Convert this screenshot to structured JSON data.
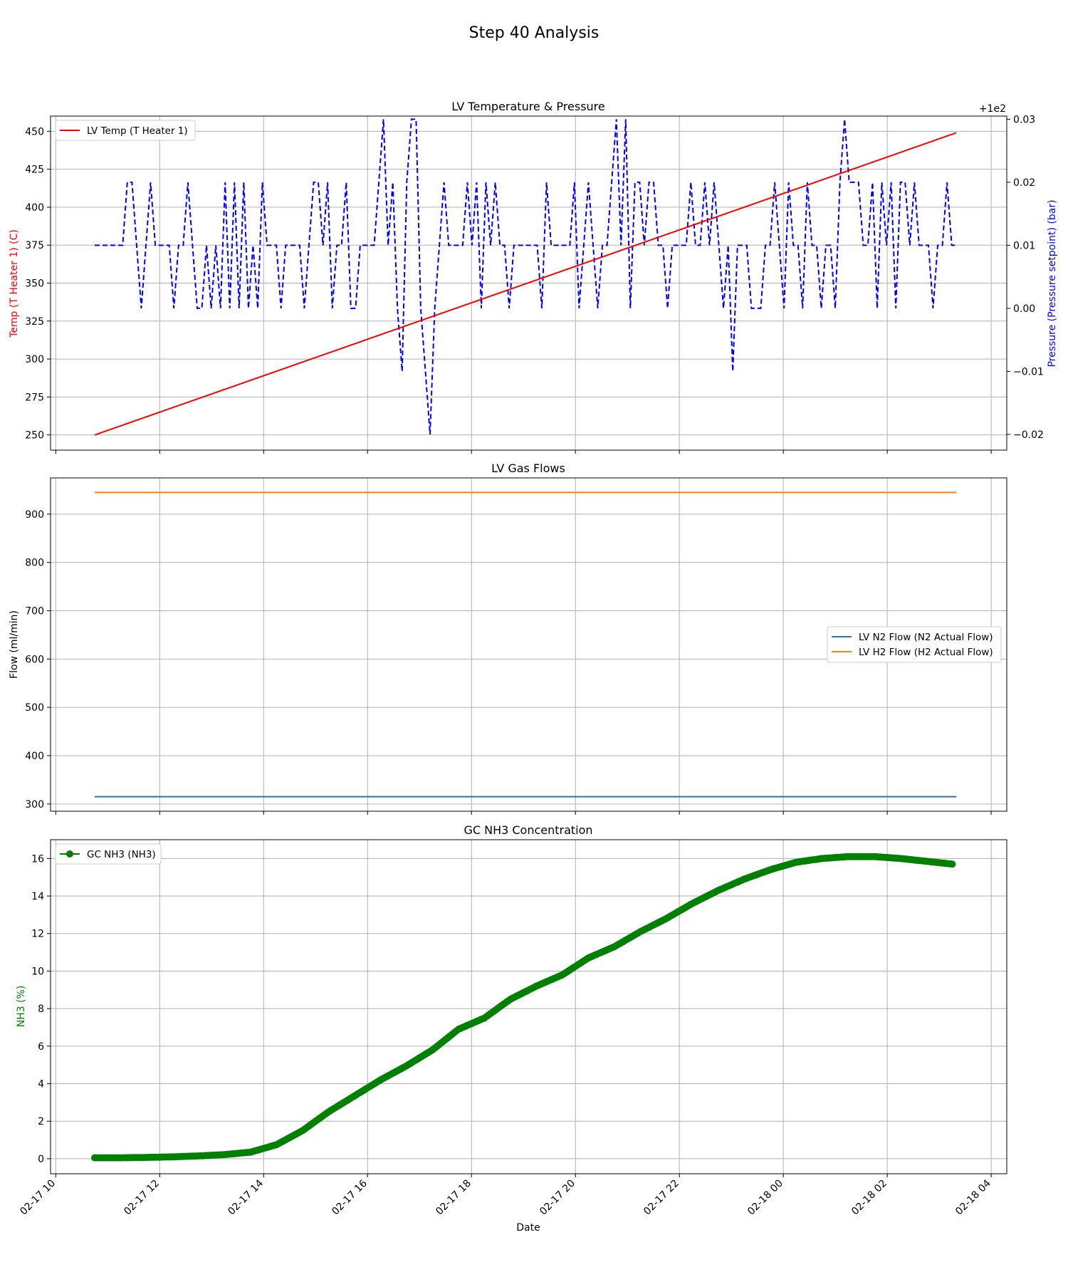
{
  "figure_title": "Step 40 Analysis",
  "x_ticks": [
    "02-17 10",
    "02-17 12",
    "02-17 14",
    "02-17 16",
    "02-17 18",
    "02-17 20",
    "02-17 22",
    "02-18 00",
    "02-18 02",
    "02-18 04"
  ],
  "x_label": "Date",
  "colors": {
    "temp": "#ff0000",
    "pressure": "#0000ff",
    "n2": "#1f77b4",
    "h2": "#ff7f0e",
    "nh3": "#008000"
  },
  "chart_data": [
    {
      "type": "line",
      "title": "LV Temperature & Pressure",
      "x_range": [
        "2017-02-17 10:45",
        "2017-02-18 03:20"
      ],
      "xlim_hours": [
        9.9,
        28.3
      ],
      "ylabel": "Temp (T Heater 1) (C)",
      "ylim": [
        240,
        460
      ],
      "yticks": [
        "250",
        "275",
        "300",
        "325",
        "350",
        "375",
        "400",
        "425",
        "450"
      ],
      "y2label": "Pressure (Pressure setpoint) (bar)",
      "y2_offset_label": "+1e2",
      "y2lim": [
        -0.0225,
        0.0305
      ],
      "y2ticks": [
        "−0.02",
        "−0.01",
        "0.00",
        "0.01",
        "0.02",
        "0.03"
      ],
      "legend": [
        "LV Temp (T Heater 1)"
      ],
      "legend_position": "upper left",
      "series": [
        {
          "name": "LV Temp (T Heater 1)",
          "axis": "left",
          "style": "solid",
          "x_hours": [
            10.75,
            27.33
          ],
          "values": [
            250,
            449
          ]
        },
        {
          "name": "Pressure (Pressure setpoint)",
          "axis": "right",
          "style": "dashed",
          "x_start_hours": 10.75,
          "x_end_hours": 27.33,
          "values_offset": [
            0.01,
            0.01,
            0.01,
            0.01,
            0.01,
            0.01,
            0.01,
            0.02,
            0.02,
            0.01,
            0,
            0.01,
            0.02,
            0.01,
            0.01,
            0.01,
            0.01,
            0,
            0.01,
            0.01,
            0.02,
            0.01,
            0,
            0,
            0.01,
            0,
            0.01,
            0,
            0.02,
            0,
            0.02,
            0,
            0.02,
            0,
            0.01,
            0,
            0.02,
            0.01,
            0.01,
            0.01,
            0,
            0.01,
            0.01,
            0.01,
            0.01,
            0,
            0.01,
            0.02,
            0.02,
            0.01,
            0.02,
            0,
            0.01,
            0.01,
            0.02,
            0,
            0,
            0.01,
            0.01,
            0.01,
            0.01,
            0.02,
            0.03,
            0.01,
            0.02,
            0,
            -0.01,
            0.02,
            0.03,
            0.03,
            0,
            -0.01,
            -0.02,
            0,
            0.01,
            0.02,
            0.01,
            0.01,
            0.01,
            0.01,
            0.02,
            0.01,
            0.02,
            0,
            0.02,
            0.01,
            0.02,
            0.01,
            0.01,
            0,
            0.01,
            0.01,
            0.01,
            0.01,
            0.01,
            0.01,
            0,
            0.02,
            0.01,
            0.01,
            0.01,
            0.01,
            0.01,
            0.02,
            0,
            0.01,
            0.02,
            0.01,
            0,
            0.01,
            0.01,
            0.02,
            0.03,
            0.01,
            0.03,
            0,
            0.02,
            0.02,
            0.01,
            0.02,
            0.02,
            0.01,
            0.01,
            0,
            0.01,
            0.01,
            0.01,
            0.01,
            0.02,
            0.01,
            0.01,
            0.02,
            0.01,
            0.02,
            0.01,
            0,
            0.01,
            -0.01,
            0.01,
            0.01,
            0.01,
            0,
            0,
            0,
            0.01,
            0.01,
            0.02,
            0.01,
            0,
            0.02,
            0.01,
            0.01,
            0,
            0.02,
            0.01,
            0.01,
            0,
            0.01,
            0.01,
            0,
            0.02,
            0.03,
            0.02,
            0.02,
            0.02,
            0.01,
            0.01,
            0.02,
            0,
            0.02,
            0.01,
            0.02,
            0,
            0.02,
            0.02,
            0.01,
            0.02,
            0.01,
            0.01,
            0.01,
            0,
            0.01,
            0.01,
            0.02,
            0.01,
            0.01
          ]
        }
      ]
    },
    {
      "type": "line",
      "title": "LV Gas Flows",
      "xlim_hours": [
        9.9,
        28.3
      ],
      "ylabel": "Flow (ml/min)",
      "ylim": [
        285,
        975
      ],
      "yticks": [
        "300",
        "400",
        "500",
        "600",
        "700",
        "800",
        "900"
      ],
      "legend": [
        "LV N2 Flow (N2 Actual Flow)",
        "LV H2 Flow (H2 Actual Flow)"
      ],
      "legend_position": "center right",
      "series": [
        {
          "name": "LV N2 Flow (N2 Actual Flow)",
          "x_hours": [
            10.75,
            27.33
          ],
          "values": [
            315,
            315
          ]
        },
        {
          "name": "LV H2 Flow (H2 Actual Flow)",
          "x_hours": [
            10.75,
            27.33
          ],
          "values": [
            945,
            945
          ]
        }
      ]
    },
    {
      "type": "line",
      "marker": "circle",
      "title": "GC NH3 Concentration",
      "xlim_hours": [
        9.9,
        28.3
      ],
      "xlabel": "Date",
      "ylabel": "NH3 (%)",
      "ylim": [
        -0.8,
        17
      ],
      "yticks": [
        "0",
        "2",
        "4",
        "6",
        "8",
        "10",
        "12",
        "14",
        "16"
      ],
      "legend": [
        "GC NH3 (NH3)"
      ],
      "legend_position": "upper left",
      "series": [
        {
          "name": "GC NH3 (NH3)",
          "x_hours": [
            10.75,
            11.25,
            11.75,
            12.25,
            12.75,
            13.25,
            13.75,
            14.25,
            14.75,
            15.25,
            15.75,
            16.25,
            16.75,
            17.25,
            17.75,
            18.25,
            18.75,
            19.25,
            19.75,
            20.25,
            20.75,
            21.25,
            21.75,
            22.25,
            22.75,
            23.25,
            23.75,
            24.25,
            24.75,
            25.25,
            25.75,
            26.25,
            26.75,
            27.25
          ],
          "values": [
            0.05,
            0.05,
            0.07,
            0.1,
            0.15,
            0.22,
            0.35,
            0.75,
            1.5,
            2.5,
            3.35,
            4.2,
            4.95,
            5.8,
            6.9,
            7.5,
            8.5,
            9.2,
            9.8,
            10.7,
            11.3,
            12.1,
            12.8,
            13.6,
            14.3,
            14.9,
            15.4,
            15.8,
            16.0,
            16.1,
            16.1,
            16.0,
            15.85,
            15.7
          ]
        }
      ]
    }
  ]
}
